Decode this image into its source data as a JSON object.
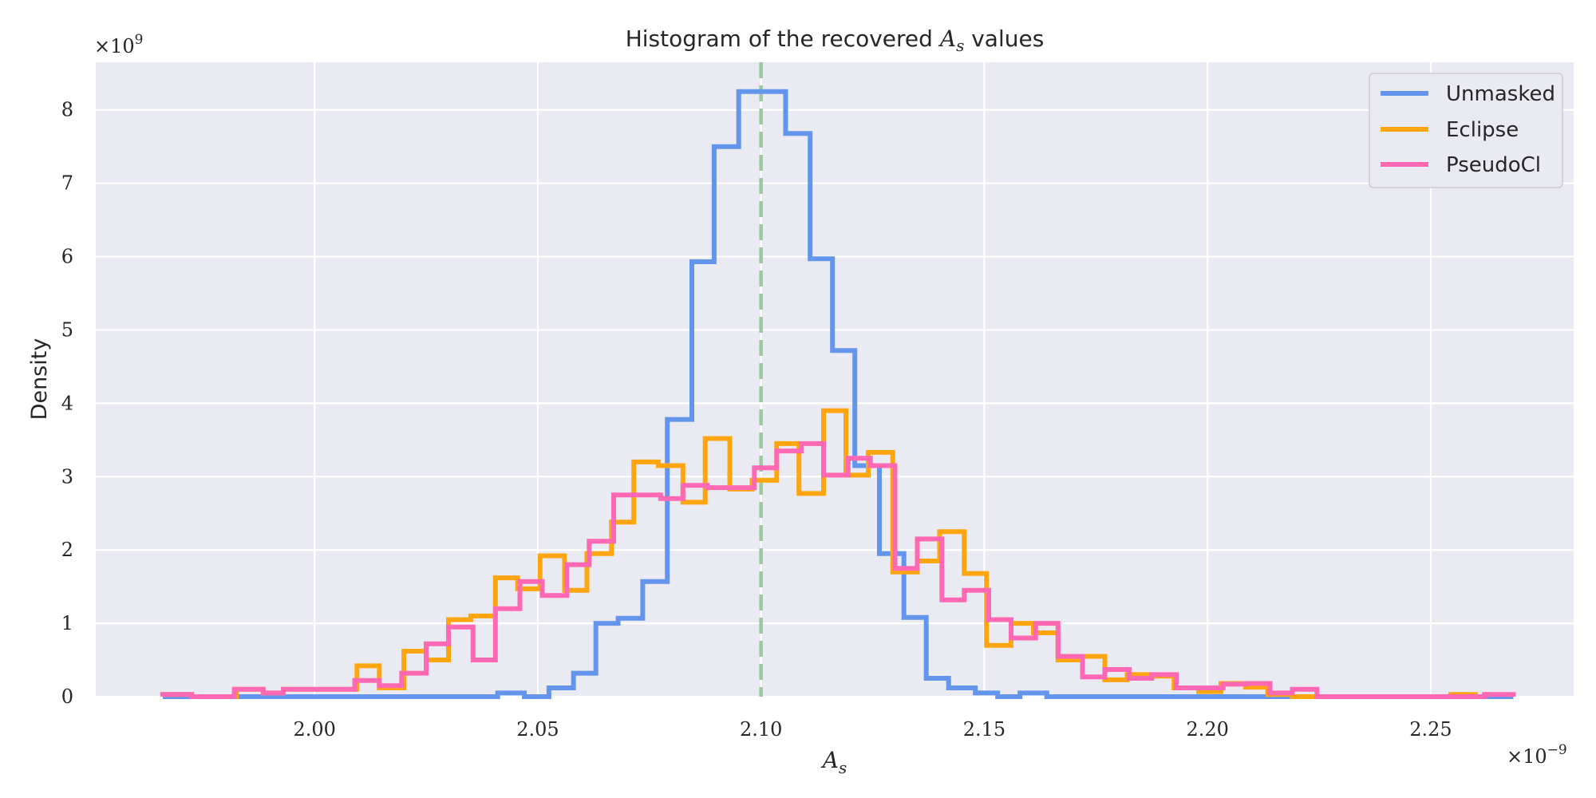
{
  "chart_data": {
    "type": "histogram",
    "title": "Histogram of the recovered A_s values",
    "title_parts": {
      "prefix": "Histogram of the recovered ",
      "symbol": "A",
      "subscript": "s",
      "suffix": " values"
    },
    "xlabel": {
      "symbol": "A",
      "subscript": "s"
    },
    "ylabel": "Density",
    "x_offset_text": {
      "base": "×10",
      "exp": "−9"
    },
    "y_offset_text": {
      "base": "×10",
      "exp": "9"
    },
    "xlim": [
      1.951,
      2.282
    ],
    "ylim": [
      0,
      8.65
    ],
    "x_ticks": [
      2.0,
      2.05,
      2.1,
      2.15,
      2.2,
      2.25
    ],
    "x_tick_labels": [
      "2.00",
      "2.05",
      "2.10",
      "2.15",
      "2.20",
      "2.25"
    ],
    "y_ticks": [
      0,
      1,
      2,
      3,
      4,
      5,
      6,
      7,
      8
    ],
    "y_tick_labels": [
      "0",
      "1",
      "2",
      "3",
      "4",
      "5",
      "6",
      "7",
      "8"
    ],
    "grid": true,
    "legend_placement": "top-right",
    "true_value_line": {
      "x": 2.1,
      "color": "#9dc89d",
      "style": "dashed"
    },
    "series": [
      {
        "name": "Unmasked",
        "color": "#6495ed",
        "bin_edges": [
          1.966,
          2.041,
          2.047,
          2.0525,
          2.058,
          2.063,
          2.068,
          2.0735,
          2.079,
          2.0845,
          2.0895,
          2.095,
          2.1055,
          2.111,
          2.116,
          2.121,
          2.1265,
          2.132,
          2.137,
          2.142,
          2.148,
          2.153,
          2.158,
          2.164,
          2.2685
        ],
        "values": [
          0,
          0.05,
          0,
          0.12,
          0.32,
          1.0,
          1.07,
          1.57,
          3.78,
          5.93,
          7.5,
          8.25,
          7.68,
          5.97,
          4.72,
          3.15,
          1.95,
          1.08,
          0.25,
          0.12,
          0.05,
          0,
          0.05,
          0
        ]
      },
      {
        "name": "Eclipse",
        "color": "#ffa510",
        "bin_edges": [
          1.966,
          1.9725,
          1.9825,
          1.9885,
          1.993,
          1.999,
          2.004,
          2.0095,
          2.0145,
          2.02,
          2.025,
          2.03,
          2.035,
          2.0405,
          2.0455,
          2.0505,
          2.056,
          2.061,
          2.0665,
          2.0715,
          2.077,
          2.0825,
          2.0875,
          2.093,
          2.098,
          2.1035,
          2.1085,
          2.114,
          2.119,
          2.124,
          2.1295,
          2.135,
          2.14,
          2.1455,
          2.1505,
          2.156,
          2.161,
          2.1665,
          2.1715,
          2.177,
          2.182,
          2.187,
          2.1925,
          2.198,
          2.203,
          2.2085,
          2.2135,
          2.219,
          2.2225,
          2.2245,
          2.2545,
          2.26
        ],
        "values": [
          0.03,
          0,
          0.1,
          0.05,
          0.1,
          0.1,
          0.1,
          0.42,
          0.12,
          0.62,
          0.5,
          1.05,
          1.1,
          1.62,
          1.47,
          1.92,
          1.45,
          1.95,
          2.38,
          3.2,
          3.15,
          2.65,
          3.52,
          2.83,
          2.95,
          3.45,
          2.77,
          3.9,
          3.02,
          3.33,
          1.7,
          1.85,
          2.25,
          1.68,
          0.7,
          1.0,
          0.87,
          0.5,
          0.55,
          0.23,
          0.3,
          0.28,
          0.12,
          0.07,
          0.18,
          0.13,
          0.03,
          0,
          0,
          0,
          0.03
        ]
      },
      {
        "name": "PseudoCl",
        "color": "#ff69b4",
        "bin_edges": [
          1.966,
          1.9725,
          1.982,
          1.9885,
          1.993,
          1.999,
          2.004,
          2.009,
          2.0145,
          2.0195,
          2.025,
          2.03,
          2.0355,
          2.0405,
          2.046,
          2.051,
          2.0565,
          2.0615,
          2.067,
          2.072,
          2.0775,
          2.0825,
          2.088,
          2.093,
          2.0985,
          2.1035,
          2.109,
          2.114,
          2.1195,
          2.1245,
          2.13,
          2.135,
          2.1405,
          2.1455,
          2.151,
          2.156,
          2.1615,
          2.1665,
          2.172,
          2.177,
          2.1825,
          2.1875,
          2.193,
          2.198,
          2.2035,
          2.2085,
          2.214,
          2.219,
          2.2245,
          2.262,
          2.2685
        ],
        "values": [
          0.03,
          0,
          0.1,
          0.05,
          0.1,
          0.1,
          0.1,
          0.22,
          0.15,
          0.32,
          0.72,
          0.95,
          0.5,
          1.2,
          1.57,
          1.38,
          1.8,
          2.12,
          2.75,
          2.75,
          2.7,
          2.88,
          2.85,
          2.85,
          3.12,
          3.35,
          3.45,
          3.02,
          3.25,
          3.15,
          1.75,
          2.15,
          1.32,
          1.45,
          1.05,
          0.8,
          1.0,
          0.55,
          0.27,
          0.37,
          0.25,
          0.3,
          0.12,
          0.12,
          0.17,
          0.18,
          0.05,
          0.1,
          0,
          0.03
        ]
      }
    ]
  }
}
